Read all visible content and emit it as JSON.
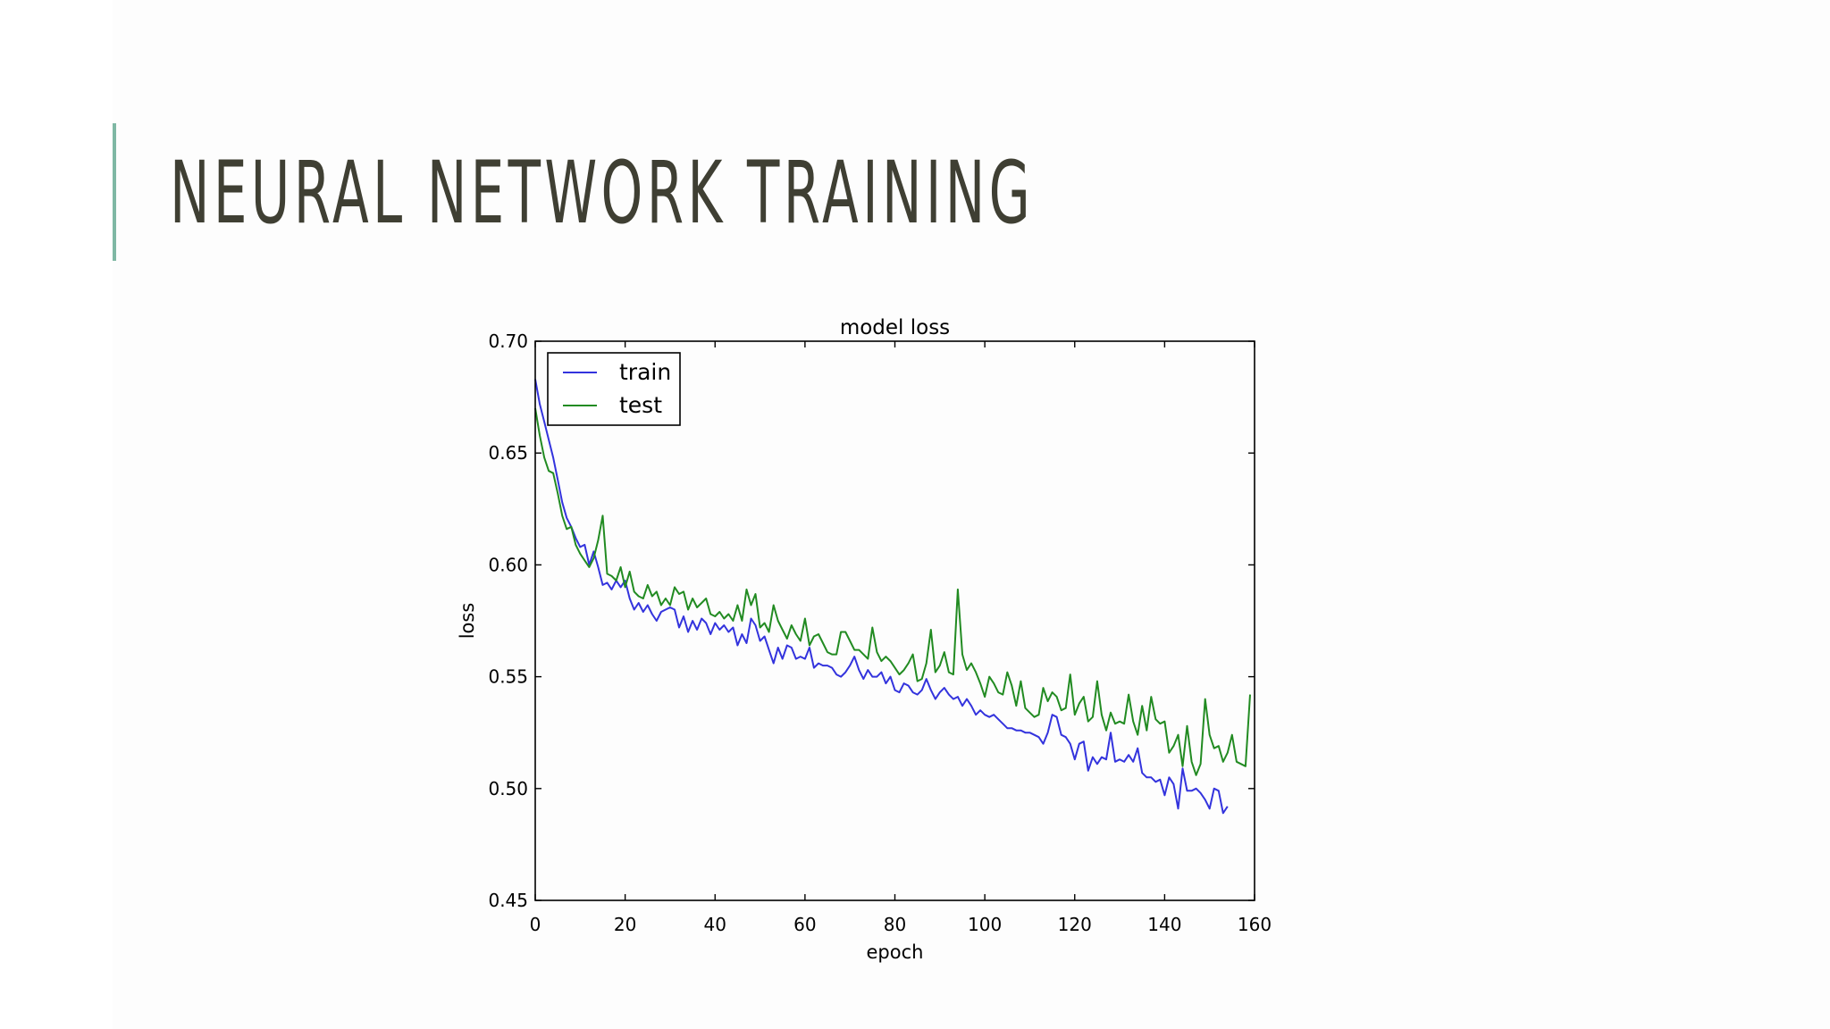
{
  "slide": {
    "title": "NEURAL NETWORK TRAINING",
    "accent_color": "#7fb8a4",
    "title_color": "#3f3f33"
  },
  "chart_data": {
    "type": "line",
    "title": "model loss",
    "xlabel": "epoch",
    "ylabel": "loss",
    "xlim": [
      0,
      160
    ],
    "ylim": [
      0.45,
      0.7
    ],
    "xticks": [
      0,
      20,
      40,
      60,
      80,
      100,
      120,
      140,
      160
    ],
    "xtick_labels": [
      "0",
      "20",
      "40",
      "60",
      "80",
      "100",
      "120",
      "140",
      "160"
    ],
    "yticks": [
      0.45,
      0.5,
      0.55,
      0.6,
      0.65,
      0.7
    ],
    "ytick_labels": [
      "0.45",
      "0.50",
      "0.55",
      "0.60",
      "0.65",
      "0.70"
    ],
    "grid": false,
    "legend": "upper-left",
    "series": [
      {
        "name": "train",
        "color": "#3333dd",
        "values": [
          0.683,
          0.672,
          0.664,
          0.656,
          0.648,
          0.638,
          0.628,
          0.621,
          0.617,
          0.612,
          0.608,
          0.609,
          0.6,
          0.606,
          0.599,
          0.591,
          0.592,
          0.589,
          0.593,
          0.59,
          0.593,
          0.585,
          0.58,
          0.583,
          0.579,
          0.582,
          0.578,
          0.575,
          0.579,
          0.58,
          0.581,
          0.58,
          0.572,
          0.577,
          0.57,
          0.575,
          0.571,
          0.576,
          0.574,
          0.569,
          0.574,
          0.571,
          0.573,
          0.57,
          0.572,
          0.564,
          0.569,
          0.565,
          0.576,
          0.573,
          0.566,
          0.568,
          0.562,
          0.556,
          0.563,
          0.558,
          0.564,
          0.563,
          0.558,
          0.559,
          0.558,
          0.563,
          0.554,
          0.556,
          0.555,
          0.555,
          0.554,
          0.551,
          0.55,
          0.552,
          0.555,
          0.559,
          0.553,
          0.549,
          0.553,
          0.55,
          0.55,
          0.552,
          0.547,
          0.55,
          0.544,
          0.543,
          0.547,
          0.546,
          0.543,
          0.542,
          0.544,
          0.549,
          0.544,
          0.54,
          0.543,
          0.545,
          0.542,
          0.54,
          0.541,
          0.537,
          0.54,
          0.537,
          0.533,
          0.535,
          0.533,
          0.532,
          0.533,
          0.531,
          0.529,
          0.527,
          0.527,
          0.526,
          0.526,
          0.525,
          0.525,
          0.524,
          0.523,
          0.52,
          0.525,
          0.533,
          0.532,
          0.524,
          0.523,
          0.52,
          0.513,
          0.52,
          0.521,
          0.508,
          0.514,
          0.511,
          0.514,
          0.513,
          0.525,
          0.512,
          0.513,
          0.512,
          0.515,
          0.512,
          0.518,
          0.507,
          0.505,
          0.505,
          0.503,
          0.504,
          0.497,
          0.505,
          0.502,
          0.491,
          0.509,
          0.499,
          0.499,
          0.5,
          0.498,
          0.495,
          0.491,
          0.5,
          0.499,
          0.489,
          0.492
        ]
      },
      {
        "name": "test",
        "color": "#228b22",
        "values": [
          0.67,
          0.658,
          0.648,
          0.642,
          0.641,
          0.632,
          0.622,
          0.616,
          0.617,
          0.609,
          0.605,
          0.602,
          0.599,
          0.603,
          0.611,
          0.622,
          0.596,
          0.595,
          0.593,
          0.599,
          0.59,
          0.597,
          0.588,
          0.586,
          0.585,
          0.591,
          0.586,
          0.588,
          0.582,
          0.585,
          0.582,
          0.59,
          0.587,
          0.588,
          0.58,
          0.585,
          0.581,
          0.583,
          0.585,
          0.578,
          0.577,
          0.579,
          0.576,
          0.578,
          0.575,
          0.582,
          0.575,
          0.589,
          0.582,
          0.587,
          0.572,
          0.574,
          0.57,
          0.582,
          0.575,
          0.571,
          0.567,
          0.573,
          0.569,
          0.566,
          0.576,
          0.564,
          0.568,
          0.569,
          0.565,
          0.561,
          0.56,
          0.56,
          0.57,
          0.57,
          0.566,
          0.562,
          0.562,
          0.56,
          0.558,
          0.572,
          0.561,
          0.557,
          0.559,
          0.557,
          0.554,
          0.551,
          0.553,
          0.556,
          0.56,
          0.548,
          0.549,
          0.556,
          0.571,
          0.552,
          0.555,
          0.561,
          0.552,
          0.551,
          0.589,
          0.56,
          0.553,
          0.556,
          0.552,
          0.547,
          0.541,
          0.55,
          0.547,
          0.543,
          0.542,
          0.552,
          0.546,
          0.537,
          0.548,
          0.536,
          0.534,
          0.532,
          0.533,
          0.545,
          0.539,
          0.543,
          0.541,
          0.535,
          0.536,
          0.551,
          0.533,
          0.538,
          0.541,
          0.53,
          0.532,
          0.548,
          0.533,
          0.526,
          0.534,
          0.529,
          0.53,
          0.529,
          0.542,
          0.53,
          0.524,
          0.537,
          0.526,
          0.541,
          0.531,
          0.529,
          0.53,
          0.516,
          0.519,
          0.524,
          0.51,
          0.528,
          0.512,
          0.506,
          0.511,
          0.54,
          0.524,
          0.518,
          0.519,
          0.512,
          0.516,
          0.524,
          0.512,
          0.511,
          0.51,
          0.542
        ]
      }
    ]
  }
}
